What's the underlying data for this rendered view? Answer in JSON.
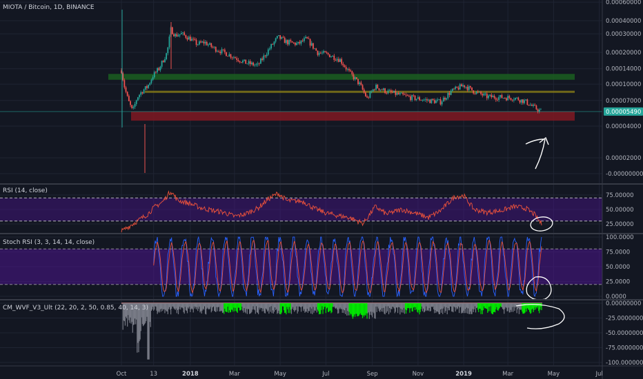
{
  "chart_data": [
    {
      "type": "candlestick",
      "title": "MIOTA / Bitcoin, 1D, BINANCE",
      "y_scale": "log",
      "y_ticks": [
        "0.00060000",
        "0.00040000",
        "0.00030000",
        "0.00020000",
        "0.00014000",
        "0.00010000",
        "0.00007000",
        "0.00004000",
        "0.00002000",
        "-0.00000000"
      ],
      "y_tick_values": [
        0.0006,
        0.0004,
        0.0003,
        0.0002,
        0.00014,
        0.0001,
        7e-05,
        4e-05,
        2e-05,
        0.0
      ],
      "current_price_label": "0.00005490",
      "current_price": 5.49e-05,
      "close_series": [
        {
          "date": "2017-10-01",
          "close": 0.000135
        },
        {
          "date": "2017-10-05",
          "close": 9.5e-05
        },
        {
          "date": "2017-10-10",
          "close": 7e-05
        },
        {
          "date": "2017-10-16",
          "close": 5.5e-05
        },
        {
          "date": "2017-10-22",
          "close": 7.5e-05
        },
        {
          "date": "2017-10-28",
          "close": 8.5e-05
        },
        {
          "date": "2017-11-05",
          "close": 9.5e-05
        },
        {
          "date": "2017-11-12",
          "close": 0.00012
        },
        {
          "date": "2017-11-20",
          "close": 0.00014
        },
        {
          "date": "2017-12-01",
          "close": 0.0002
        },
        {
          "date": "2017-12-06",
          "close": 0.00033
        },
        {
          "date": "2017-12-12",
          "close": 0.00029
        },
        {
          "date": "2017-12-20",
          "close": 0.0003
        },
        {
          "date": "2018-01-01",
          "close": 0.00027
        },
        {
          "date": "2018-01-10",
          "close": 0.00024
        },
        {
          "date": "2018-01-20",
          "close": 0.00025
        },
        {
          "date": "2018-02-01",
          "close": 0.00022
        },
        {
          "date": "2018-02-15",
          "close": 0.0002
        },
        {
          "date": "2018-03-01",
          "close": 0.00018
        },
        {
          "date": "2018-03-15",
          "close": 0.00016
        },
        {
          "date": "2018-04-01",
          "close": 0.00015
        },
        {
          "date": "2018-04-15",
          "close": 0.00021
        },
        {
          "date": "2018-04-28",
          "close": 0.00028
        },
        {
          "date": "2018-05-10",
          "close": 0.00025
        },
        {
          "date": "2018-05-25",
          "close": 0.00024
        },
        {
          "date": "2018-06-05",
          "close": 0.00027
        },
        {
          "date": "2018-06-20",
          "close": 0.0002
        },
        {
          "date": "2018-07-05",
          "close": 0.00019
        },
        {
          "date": "2018-07-20",
          "close": 0.00017
        },
        {
          "date": "2018-08-01",
          "close": 0.00013
        },
        {
          "date": "2018-08-15",
          "close": 0.0001
        },
        {
          "date": "2018-08-25",
          "close": 7.3e-05
        },
        {
          "date": "2018-09-05",
          "close": 9.5e-05
        },
        {
          "date": "2018-09-20",
          "close": 8.5e-05
        },
        {
          "date": "2018-10-05",
          "close": 8e-05
        },
        {
          "date": "2018-10-25",
          "close": 7.4e-05
        },
        {
          "date": "2018-11-15",
          "close": 7e-05
        },
        {
          "date": "2018-12-01",
          "close": 6.8e-05
        },
        {
          "date": "2018-12-15",
          "close": 8.5e-05
        },
        {
          "date": "2019-01-01",
          "close": 9.8e-05
        },
        {
          "date": "2019-01-15",
          "close": 8.5e-05
        },
        {
          "date": "2019-02-01",
          "close": 7.6e-05
        },
        {
          "date": "2019-02-20",
          "close": 7.5e-05
        },
        {
          "date": "2019-03-10",
          "close": 7.4e-05
        },
        {
          "date": "2019-03-25",
          "close": 6.8e-05
        },
        {
          "date": "2019-04-05",
          "close": 6e-05
        },
        {
          "date": "2019-04-15",
          "close": 5.49e-05
        }
      ],
      "zones": [
        {
          "name": "green",
          "low": 0.00011,
          "high": 0.000125,
          "color": "#1b5e20"
        },
        {
          "name": "olive",
          "low": 8.35e-05,
          "high": 8.65e-05,
          "color": "#827717"
        },
        {
          "name": "red",
          "low": 4.5e-05,
          "high": 5.5e-05,
          "color": "#801922"
        }
      ]
    },
    {
      "type": "line",
      "title": "RSI (14, close)",
      "y_ticks": [
        "75.00000",
        "50.00000",
        "25.00000"
      ],
      "y_tick_values": [
        75,
        50,
        25
      ],
      "bands": [
        70,
        30
      ],
      "series": [
        {
          "color": "#f0533b",
          "values_by_date": [
            [
              "2017-10-01",
              12
            ],
            [
              "2017-10-10",
              20
            ],
            [
              "2017-10-20",
              28
            ],
            [
              "2017-10-28",
              35
            ],
            [
              "2017-11-05",
              42
            ],
            [
              "2017-11-15",
              55
            ],
            [
              "2017-11-25",
              63
            ],
            [
              "2017-12-06",
              82
            ],
            [
              "2017-12-15",
              66
            ],
            [
              "2018-01-01",
              60
            ],
            [
              "2018-01-15",
              53
            ],
            [
              "2018-02-01",
              48
            ],
            [
              "2018-02-15",
              45
            ],
            [
              "2018-03-01",
              38
            ],
            [
              "2018-03-15",
              42
            ],
            [
              "2018-04-01",
              52
            ],
            [
              "2018-04-15",
              68
            ],
            [
              "2018-04-28",
              78
            ],
            [
              "2018-05-10",
              65
            ],
            [
              "2018-06-01",
              64
            ],
            [
              "2018-06-15",
              52
            ],
            [
              "2018-07-01",
              44
            ],
            [
              "2018-07-15",
              40
            ],
            [
              "2018-08-01",
              36
            ],
            [
              "2018-08-20",
              26
            ],
            [
              "2018-09-05",
              55
            ],
            [
              "2018-09-20",
              42
            ],
            [
              "2018-10-10",
              50
            ],
            [
              "2018-10-25",
              45
            ],
            [
              "2018-11-15",
              36
            ],
            [
              "2018-12-01",
              48
            ],
            [
              "2018-12-20",
              72
            ],
            [
              "2019-01-01",
              74
            ],
            [
              "2019-01-15",
              50
            ],
            [
              "2019-02-01",
              45
            ],
            [
              "2019-02-20",
              48
            ],
            [
              "2019-03-10",
              55
            ],
            [
              "2019-03-25",
              52
            ],
            [
              "2019-04-05",
              42
            ],
            [
              "2019-04-15",
              25
            ]
          ]
        }
      ]
    },
    {
      "type": "line",
      "title": "Stoch RSI (3, 3, 14, 14, close)",
      "y_ticks": [
        "100.0000",
        "75.0000",
        "50.0000",
        "25.0000",
        "0.0000"
      ],
      "y_tick_values": [
        100,
        75,
        50,
        25,
        0
      ],
      "bands": [
        80,
        20
      ],
      "series": [
        {
          "color": "#2962ff"
        },
        {
          "color": "#f0533b"
        }
      ]
    },
    {
      "type": "histogram",
      "title": "CM_WVF_V3_Ult (22, 20, 2, 50, 0.85, 40, 14, 3)",
      "y_ticks": [
        "0.00000000",
        "-25.00000000",
        "-50.00000000",
        "-75.00000000",
        "-100.00000000"
      ],
      "y_tick_values": [
        0,
        -25,
        -50,
        -75,
        -100
      ]
    }
  ],
  "x_axis": {
    "ticks": [
      {
        "label": "Oct",
        "date": "2017-10-01"
      },
      {
        "label": "13",
        "date": "2017-11-13"
      },
      {
        "label": "2018",
        "date": "2018-01-01"
      },
      {
        "label": "Mar",
        "date": "2018-03-01"
      },
      {
        "label": "May",
        "date": "2018-05-01"
      },
      {
        "label": "Jul",
        "date": "2018-07-01"
      },
      {
        "label": "Sep",
        "date": "2018-09-01"
      },
      {
        "label": "Nov",
        "date": "2018-11-01"
      },
      {
        "label": "2019",
        "date": "2019-01-01"
      },
      {
        "label": "Mar",
        "date": "2019-03-01"
      },
      {
        "label": "May",
        "date": "2019-05-01"
      },
      {
        "label": "Jul",
        "date": "2019-07-01"
      }
    ]
  },
  "colors": {
    "background": "#131722",
    "grid": "#1f2433",
    "up": "#26a69a",
    "down": "#ef5350",
    "rsi": "#f0533b",
    "stoch_k": "#2962ff",
    "stoch_d": "#f0533b",
    "band_fill": "#4a148c",
    "wvf_gray": "#787b86",
    "wvf_lime": "#00e600",
    "price_badge": "#26a69a"
  }
}
